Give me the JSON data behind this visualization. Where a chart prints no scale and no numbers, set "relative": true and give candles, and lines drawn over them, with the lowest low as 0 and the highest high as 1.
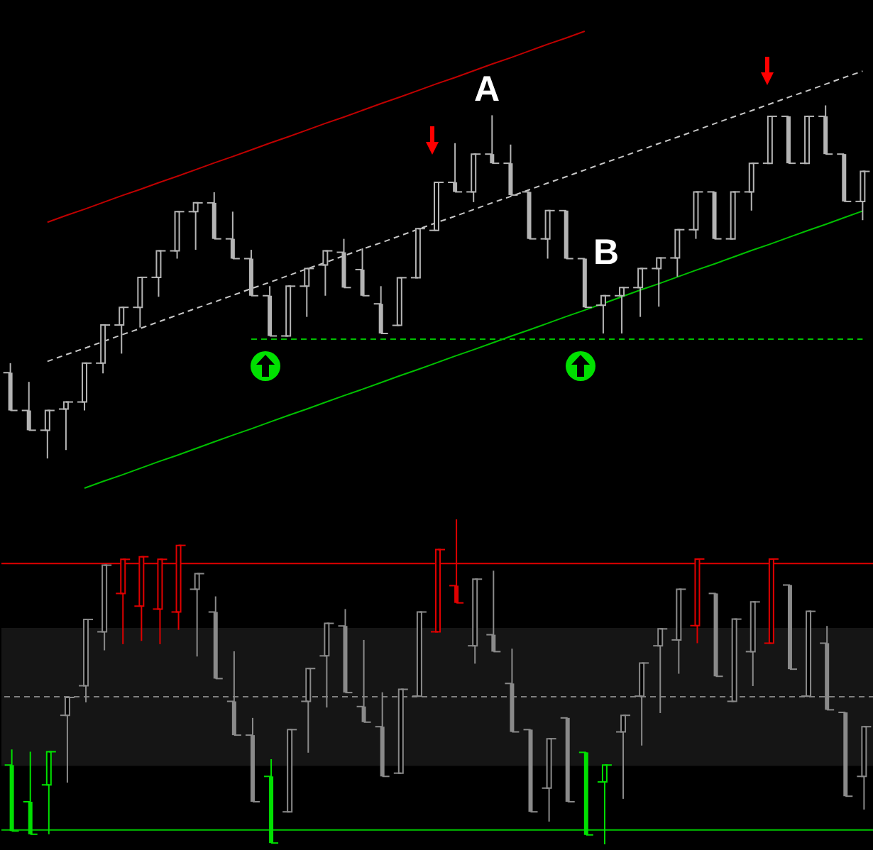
{
  "chart_data": [
    {
      "type": "candlestick",
      "relative": true,
      "color": "#b4b4b4",
      "categories": [
        null,
        null,
        null,
        null,
        null,
        null,
        null,
        null,
        null,
        null,
        null,
        null,
        null,
        null,
        null,
        null,
        null,
        null,
        null,
        null,
        null,
        null,
        null,
        null,
        null,
        null,
        null,
        null,
        null,
        null,
        null,
        null,
        null,
        null,
        null,
        null,
        null,
        null,
        null,
        null,
        null,
        null,
        null,
        null,
        null,
        null,
        null
      ],
      "ohlc": [
        [
          0.243,
          0.27,
          0.136,
          0.136
        ],
        [
          0.136,
          0.217,
          0.08,
          0.08
        ],
        [
          0.08,
          0.136,
          0,
          0.136
        ],
        [
          0.14,
          0.16,
          0.024,
          0.16
        ],
        [
          0.16,
          0.27,
          0.136,
          0.27
        ],
        [
          0.27,
          0.378,
          0.241,
          0.378
        ],
        [
          0.378,
          0.428,
          0.297,
          0.428
        ],
        [
          0.428,
          0.513,
          0.371,
          0.513
        ],
        [
          0.513,
          0.588,
          0.458,
          0.588
        ],
        [
          0.588,
          0.699,
          0.566,
          0.699
        ],
        [
          0.699,
          0.724,
          0.591,
          0.724
        ],
        [
          0.724,
          0.754,
          0.622,
          0.622
        ],
        [
          0.622,
          0.699,
          0.566,
          0.566
        ],
        [
          0.566,
          0.591,
          0.461,
          0.461
        ],
        [
          0.461,
          0.488,
          0.347,
          0.347
        ],
        [
          0.347,
          0.488,
          0.347,
          0.488
        ],
        [
          0.488,
          0.538,
          0.401,
          0.538
        ],
        [
          0.548,
          0.588,
          0.461,
          0.588
        ],
        [
          0.584,
          0.622,
          0.484,
          0.484
        ],
        [
          0.535,
          0.595,
          0.461,
          0.461
        ],
        [
          0.438,
          0.488,
          0.354,
          0.354
        ],
        [
          0.377,
          0.512,
          0.377,
          0.512
        ],
        [
          0.512,
          0.651,
          0.512,
          0.651
        ],
        [
          0.646,
          0.782,
          0.646,
          0.782
        ],
        [
          0.782,
          0.893,
          0.755,
          0.755
        ],
        [
          0.755,
          0.862,
          0.726,
          0.862
        ],
        [
          0.862,
          0.972,
          0.836,
          0.836
        ],
        [
          0.836,
          0.889,
          0.746,
          0.746
        ],
        [
          0.755,
          0.755,
          0.622,
          0.622
        ],
        [
          0.622,
          0.702,
          0.566,
          0.702
        ],
        [
          0.702,
          0.702,
          0.566,
          0.566
        ],
        [
          0.566,
          0.566,
          0.428,
          0.428
        ],
        [
          0.434,
          0.461,
          0.354,
          0.461
        ],
        [
          0.461,
          0.484,
          0.354,
          0.484
        ],
        [
          0.484,
          0.538,
          0.401,
          0.538
        ],
        [
          0.538,
          0.568,
          0.43,
          0.568
        ],
        [
          0.568,
          0.648,
          0.515,
          0.648
        ],
        [
          0.648,
          0.755,
          0.622,
          0.755
        ],
        [
          0.755,
          0.755,
          0.622,
          0.622
        ],
        [
          0.622,
          0.755,
          0.622,
          0.755
        ],
        [
          0.755,
          0.836,
          0.702,
          0.836
        ],
        [
          0.836,
          0.969,
          0.836,
          0.969
        ],
        [
          0.969,
          0.969,
          0.836,
          0.836
        ],
        [
          0.836,
          0.969,
          0.836,
          0.969
        ],
        [
          0.969,
          1,
          0.862,
          0.862
        ],
        [
          0.862,
          0.862,
          0.728,
          0.728
        ],
        [
          0.728,
          0.813,
          0.675,
          0.813
        ]
      ],
      "series": [
        {
          "type": "line",
          "color": "#c00000",
          "values": [
            null,
            null,
            0.669,
            0.688,
            0.706,
            0.725,
            0.744,
            0.762,
            0.781,
            0.799,
            0.818,
            0.837,
            0.855,
            0.874,
            0.893,
            0.911,
            0.93,
            0.949,
            0.967,
            0.986,
            1.005,
            1.023,
            1.042,
            1.061,
            1.079,
            1.098,
            1.117,
            1.135,
            1.154,
            1.173,
            1.191,
            1.21,
            null,
            null,
            null,
            null,
            null,
            null,
            null,
            null,
            null,
            null,
            null,
            null,
            null,
            null,
            null
          ]
        },
        {
          "type": "line",
          "color": "#c8c8c8",
          "line_style": "dashed",
          "values": [
            null,
            null,
            0.275,
            0.294,
            0.312,
            0.331,
            0.35,
            0.368,
            0.387,
            0.406,
            0.425,
            0.443,
            0.462,
            0.481,
            0.499,
            0.518,
            0.537,
            0.555,
            0.574,
            0.593,
            0.611,
            0.63,
            0.649,
            0.668,
            0.686,
            0.705,
            0.724,
            0.742,
            0.761,
            0.78,
            0.798,
            0.817,
            0.836,
            0.854,
            0.873,
            0.892,
            0.91,
            0.929,
            0.948,
            0.967,
            0.985,
            1.004,
            1.023,
            1.041,
            1.06,
            1.079,
            1.097
          ]
        },
        {
          "type": "line",
          "color": "#00c000",
          "values": [
            null,
            null,
            null,
            null,
            -0.084,
            -0.065,
            -0.047,
            -0.028,
            -0.009,
            0.009,
            0.028,
            0.047,
            0.066,
            0.084,
            0.103,
            0.122,
            0.14,
            0.159,
            0.178,
            0.196,
            0.215,
            0.234,
            0.252,
            0.271,
            0.29,
            0.308,
            0.327,
            0.346,
            0.364,
            0.383,
            0.402,
            0.42,
            0.439,
            0.458,
            0.477,
            0.495,
            0.514,
            0.533,
            0.551,
            0.57,
            0.589,
            0.607,
            0.626,
            0.645,
            0.663,
            0.682,
            0.701
          ]
        },
        {
          "type": "line",
          "color": "#00c000",
          "line_style": "dashed",
          "values": [
            null,
            null,
            null,
            null,
            null,
            null,
            null,
            null,
            null,
            null,
            null,
            null,
            null,
            0.338,
            0.338,
            0.338,
            0.338,
            0.338,
            0.338,
            0.338,
            0.338,
            0.338,
            0.338,
            0.338,
            0.338,
            0.338,
            0.338,
            0.338,
            0.338,
            0.338,
            0.338,
            0.338,
            0.338,
            0.338,
            0.338,
            0.338,
            0.338,
            0.338,
            0.338,
            0.338,
            0.338,
            0.338,
            0.338,
            0.338,
            0.338,
            0.338,
            0.338
          ]
        }
      ],
      "annotations": [
        "A",
        "B"
      ]
    },
    {
      "type": "candlestick",
      "relative": true,
      "categories": [
        null,
        null,
        null,
        null,
        null,
        null,
        null,
        null,
        null,
        null,
        null,
        null,
        null,
        null,
        null,
        null,
        null,
        null,
        null,
        null,
        null,
        null,
        null,
        null,
        null,
        null,
        null,
        null,
        null,
        null,
        null,
        null,
        null,
        null,
        null,
        null,
        null,
        null,
        null,
        null,
        null,
        null,
        null,
        null,
        null,
        null,
        null
      ],
      "ohlc": [
        [
          0.244,
          0.292,
          0.041,
          0.041
        ],
        [
          0.131,
          0.285,
          0.031,
          0.031
        ],
        [
          0.183,
          0.285,
          0.031,
          0.285
        ],
        [
          0.397,
          0.452,
          0.19,
          0.452
        ],
        [
          0.488,
          0.692,
          0.437,
          0.692
        ],
        [
          0.654,
          0.859,
          0.597,
          0.859
        ],
        [
          0.772,
          0.877,
          0.616,
          0.877
        ],
        [
          0.733,
          0.885,
          0.626,
          0.885
        ],
        [
          0.724,
          0.877,
          0.616,
          0.877
        ],
        [
          0.715,
          0.92,
          0.66,
          0.92
        ],
        [
          0.785,
          0.833,
          0.578,
          0.833
        ],
        [
          0.715,
          0.763,
          0.51,
          0.51
        ],
        [
          0.44,
          0.594,
          0.336,
          0.336
        ],
        [
          0.336,
          0.389,
          0.131,
          0.131
        ],
        [
          0.209,
          0.262,
          0.004,
          0.004
        ],
        [
          0.1,
          0.353,
          0.1,
          0.353
        ],
        [
          0.44,
          0.541,
          0.282,
          0.541
        ],
        [
          0.58,
          0.68,
          0.421,
          0.68
        ],
        [
          0.672,
          0.724,
          0.467,
          0.467
        ],
        [
          0.424,
          0.629,
          0.376,
          0.376
        ],
        [
          0.362,
          0.468,
          0.209,
          0.209
        ],
        [
          0.219,
          0.477,
          0.219,
          0.477
        ],
        [
          0.456,
          0.715,
          0.456,
          0.715
        ],
        [
          0.654,
          0.907,
          0.654,
          0.907
        ],
        [
          0.796,
          1,
          0.743,
          0.743
        ],
        [
          0.611,
          0.816,
          0.556,
          0.816
        ],
        [
          0.645,
          0.842,
          0.593,
          0.593
        ],
        [
          0.495,
          0.602,
          0.346,
          0.346
        ],
        [
          0.353,
          0.353,
          0.1,
          0.1
        ],
        [
          0.173,
          0.325,
          0.07,
          0.325
        ],
        [
          0.389,
          0.389,
          0.131,
          0.131
        ],
        [
          0.283,
          0.283,
          0.029,
          0.029
        ],
        [
          0.192,
          0.244,
          0,
          0.244
        ],
        [
          0.346,
          0.397,
          0.14,
          0.397
        ],
        [
          0.456,
          0.558,
          0.304,
          0.558
        ],
        [
          0.611,
          0.663,
          0.404,
          0.663
        ],
        [
          0.629,
          0.785,
          0.525,
          0.785
        ],
        [
          0.673,
          0.878,
          0.619,
          0.878
        ],
        [
          0.772,
          0.772,
          0.517,
          0.517
        ],
        [
          0.44,
          0.693,
          0.44,
          0.693
        ],
        [
          0.593,
          0.746,
          0.487,
          0.746
        ],
        [
          0.619,
          0.878,
          0.619,
          0.878
        ],
        [
          0.798,
          0.798,
          0.539,
          0.539
        ],
        [
          0.456,
          0.717,
          0.456,
          0.717
        ],
        [
          0.619,
          0.672,
          0.414,
          0.414
        ],
        [
          0.406,
          0.406,
          0.148,
          0.148
        ],
        [
          0.209,
          0.362,
          0.107,
          0.362
        ]
      ],
      "colors": [
        "#00e000",
        "#00e000",
        "#00e000",
        "#8a8a8a",
        "#8a8a8a",
        "#8a8a8a",
        "#e00000",
        "#e00000",
        "#e00000",
        "#e00000",
        "#8a8a8a",
        "#8a8a8a",
        "#8a8a8a",
        "#8a8a8a",
        "#00e000",
        "#8a8a8a",
        "#8a8a8a",
        "#8a8a8a",
        "#8a8a8a",
        "#8a8a8a",
        "#8a8a8a",
        "#8a8a8a",
        "#8a8a8a",
        "#e00000",
        "#e00000",
        "#8a8a8a",
        "#8a8a8a",
        "#8a8a8a",
        "#8a8a8a",
        "#8a8a8a",
        "#8a8a8a",
        "#00e000",
        "#00e000",
        "#8a8a8a",
        "#8a8a8a",
        "#8a8a8a",
        "#8a8a8a",
        "#e00000",
        "#8a8a8a",
        "#8a8a8a",
        "#8a8a8a",
        "#e00000",
        "#8a8a8a",
        "#8a8a8a",
        "#8a8a8a",
        "#8a8a8a",
        "#8a8a8a"
      ],
      "ref_lines": [
        {
          "axis": "y",
          "value": 0.864,
          "color": "#e00000"
        },
        {
          "axis": "y",
          "value": 0.454,
          "color": "#808080",
          "line_style": "dashed"
        },
        {
          "axis": "y",
          "value": 0.044,
          "color": "#00c800"
        }
      ],
      "bands": [
        {
          "axis": "y",
          "from": 0.241,
          "to": 0.666,
          "color": "#151515"
        }
      ]
    }
  ]
}
